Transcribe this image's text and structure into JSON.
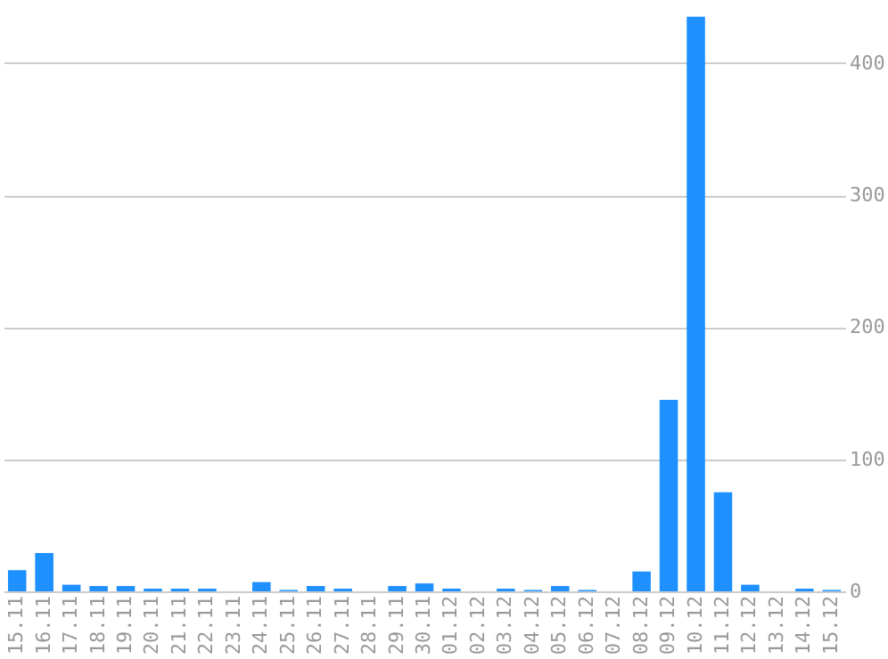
{
  "chart_data": {
    "type": "bar",
    "categories": [
      "15.11",
      "16.11",
      "17.11",
      "18.11",
      "19.11",
      "20.11",
      "21.11",
      "22.11",
      "23.11",
      "24.11",
      "25.11",
      "26.11",
      "27.11",
      "28.11",
      "29.11",
      "30.11",
      "01.12",
      "02.12",
      "03.12",
      "04.12",
      "05.12",
      "06.12",
      "07.12",
      "08.12",
      "09.12",
      "10.12",
      "11.12",
      "12.12",
      "13.12",
      "14.12",
      "15.12"
    ],
    "values": [
      16,
      29,
      5,
      4,
      4,
      2,
      2,
      2,
      0,
      7,
      1,
      4,
      2,
      0,
      4,
      6,
      2,
      0,
      2,
      1,
      4,
      1,
      0,
      15,
      145,
      435,
      75,
      5,
      0,
      2,
      1
    ],
    "color": "#1e90ff",
    "ylim": [
      0,
      445
    ],
    "yticks": [
      0,
      100,
      200,
      300,
      400
    ],
    "grid": "y"
  }
}
